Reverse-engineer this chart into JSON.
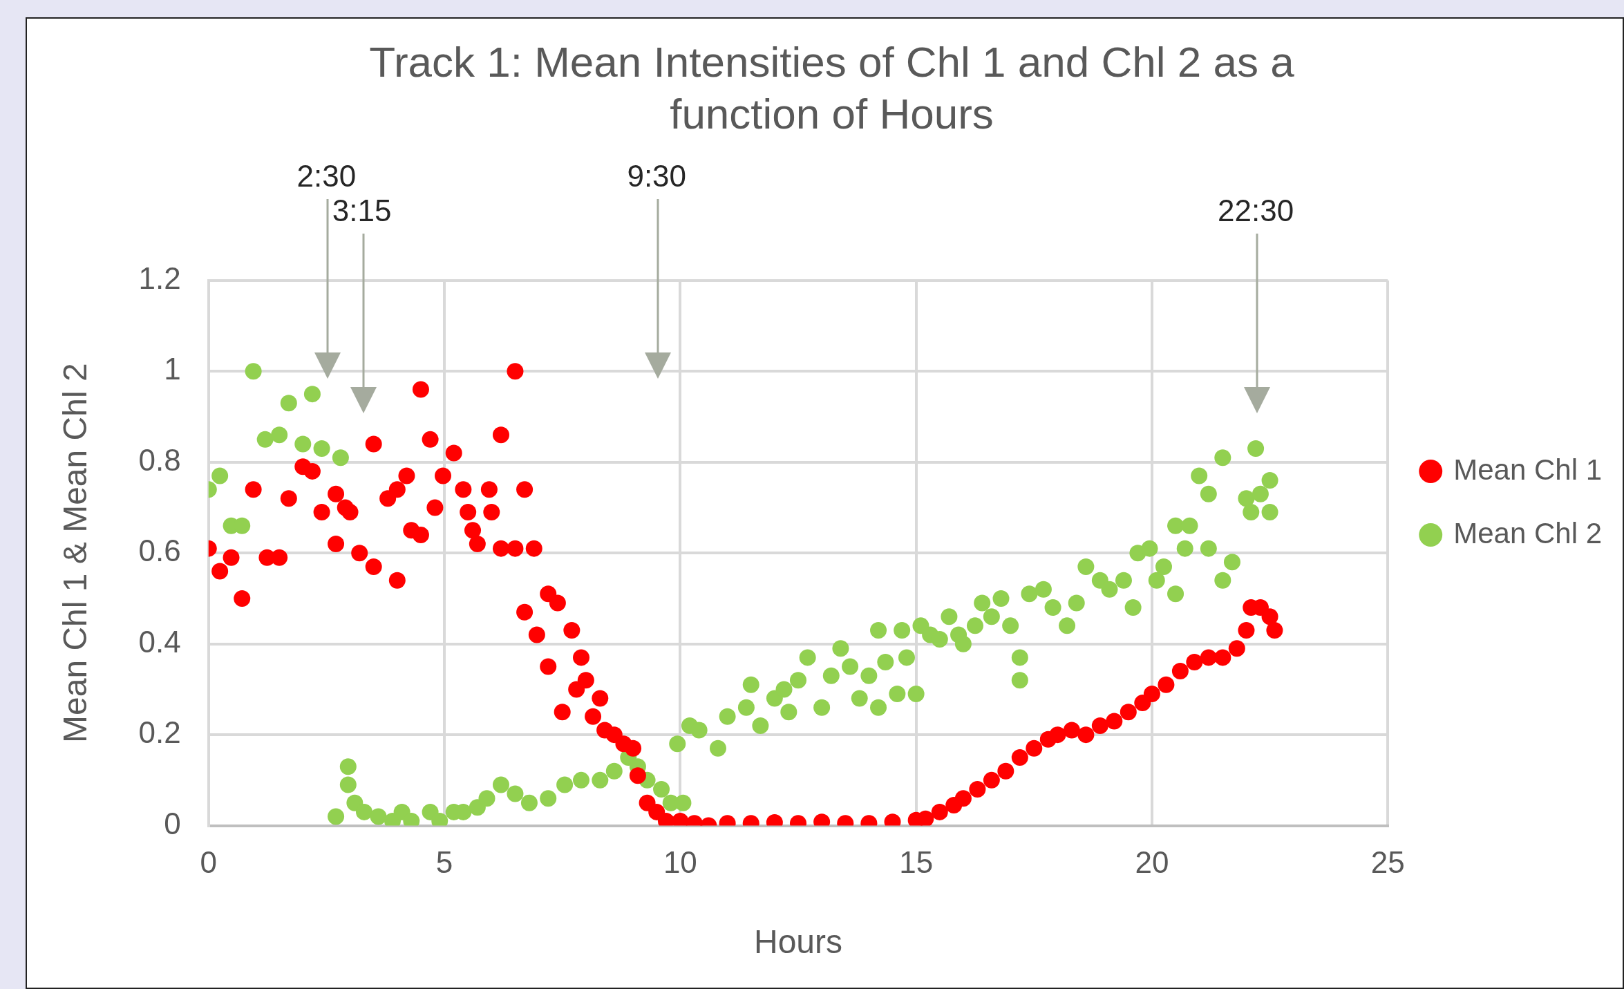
{
  "chart_data": {
    "type": "scatter",
    "title": "Track 1: Mean Intensities of Chl 1 and Chl 2 as a function of Hours",
    "xlabel": "Hours",
    "ylabel": "Mean Chl 1 & Mean Chl 2",
    "xlim": [
      0,
      25
    ],
    "xticks": [
      0,
      5,
      10,
      15,
      20,
      25
    ],
    "ylim": [
      0,
      1.2
    ],
    "yticks": [
      0,
      0.2,
      0.4,
      0.6,
      0.8,
      1,
      1.2
    ],
    "grid": true,
    "legend": "right",
    "marker": "circle",
    "ref_lines": [
      {
        "axis": "x",
        "value": 2.5,
        "label": "2:30",
        "color": "#a5ab9e"
      },
      {
        "axis": "x",
        "value": 3.25,
        "label": "3:15",
        "color": "#a5ab9e"
      },
      {
        "axis": "x",
        "value": 9.5,
        "label": "9:30",
        "color": "#a5ab9e"
      },
      {
        "axis": "x",
        "value": 22.2,
        "label": "22:30",
        "color": "#a5ab9e"
      }
    ],
    "series": [
      {
        "name": "Mean Chl 1",
        "color": "#ff0000",
        "x": [
          0,
          0.24,
          0.48,
          0.71,
          0.95,
          1.24,
          1.5,
          1.7,
          2.0,
          2.2,
          2.4,
          2.7,
          2.7,
          2.9,
          3.0,
          3.2,
          3.5,
          3.5,
          3.8,
          4.0,
          4.0,
          4.2,
          4.3,
          4.5,
          4.5,
          4.7,
          4.8,
          4.97,
          5.2,
          5.4,
          5.5,
          5.6,
          5.7,
          5.95,
          6.0,
          6.2,
          6.2,
          6.5,
          6.7,
          6.5,
          6.9,
          6.7,
          6.96,
          7.2,
          7.4,
          7.2,
          7.5,
          7.7,
          7.9,
          7.8,
          8.0,
          8.3,
          8.15,
          8.4,
          8.6,
          8.8,
          9.0,
          9.1,
          9.3,
          9.5,
          9.7,
          10.0,
          10.3,
          10.6,
          11.0,
          11.5,
          12.0,
          12.5,
          13.0,
          13.5,
          14.0,
          14.5,
          15.0,
          15.2,
          15.5,
          15.8,
          16.0,
          16.3,
          16.6,
          16.9,
          17.2,
          17.5,
          17.8,
          18.0,
          18.3,
          18.6,
          18.9,
          19.2,
          19.5,
          19.8,
          20.0,
          20.3,
          20.6,
          20.9,
          21.2,
          21.5,
          21.8,
          22.0,
          22.1,
          22.3,
          22.5,
          22.6
        ],
        "values": [
          0.61,
          0.56,
          0.59,
          0.5,
          0.74,
          0.59,
          0.59,
          0.72,
          0.79,
          0.78,
          0.69,
          0.73,
          0.62,
          0.7,
          0.69,
          0.6,
          0.84,
          0.57,
          0.72,
          0.54,
          0.74,
          0.77,
          0.65,
          0.64,
          0.96,
          0.85,
          0.7,
          0.77,
          0.82,
          0.74,
          0.69,
          0.65,
          0.62,
          0.74,
          0.69,
          0.86,
          0.61,
          1.0,
          0.74,
          0.61,
          0.61,
          0.47,
          0.42,
          0.51,
          0.49,
          0.35,
          0.25,
          0.43,
          0.37,
          0.3,
          0.32,
          0.28,
          0.24,
          0.21,
          0.2,
          0.18,
          0.17,
          0.11,
          0.05,
          0.03,
          0.01,
          0.01,
          0.005,
          0.0,
          0.005,
          0.005,
          0.007,
          0.005,
          0.008,
          0.005,
          0.005,
          0.008,
          0.012,
          0.015,
          0.03,
          0.045,
          0.06,
          0.08,
          0.1,
          0.12,
          0.15,
          0.17,
          0.19,
          0.2,
          0.21,
          0.2,
          0.22,
          0.23,
          0.25,
          0.27,
          0.29,
          0.31,
          0.34,
          0.36,
          0.37,
          0.37,
          0.39,
          0.43,
          0.48,
          0.48,
          0.46,
          0.43
        ]
      },
      {
        "name": "Mean Chl 2",
        "color": "#92d050",
        "x": [
          0,
          0.24,
          0.48,
          0.71,
          0.95,
          1.2,
          1.5,
          1.7,
          2.0,
          2.2,
          2.4,
          2.8,
          2.7,
          2.96,
          2.96,
          3.1,
          3.3,
          3.6,
          3.9,
          4.1,
          4.3,
          4.7,
          4.9,
          5.2,
          5.4,
          5.7,
          5.9,
          6.2,
          6.5,
          6.8,
          7.2,
          7.55,
          7.9,
          8.3,
          8.6,
          8.9,
          9.1,
          9.3,
          9.6,
          9.8,
          10.06,
          9.94,
          10.2,
          10.4,
          10.8,
          11.0,
          11.4,
          11.5,
          11.7,
          12.0,
          12.2,
          12.3,
          12.5,
          12.7,
          13.0,
          13.2,
          13.4,
          13.6,
          13.8,
          14.0,
          14.2,
          14.35,
          14.6,
          14.8,
          14.2,
          14.7,
          15.0,
          15.1,
          15.3,
          15.5,
          15.7,
          15.9,
          16.0,
          16.25,
          16.4,
          16.6,
          16.8,
          17.0,
          17.2,
          17.2,
          17.4,
          17.7,
          17.9,
          18.2,
          18.4,
          18.6,
          18.9,
          19.1,
          19.4,
          19.6,
          19.7,
          19.95,
          20.1,
          20.25,
          20.5,
          20.5,
          20.8,
          20.7,
          21.0,
          21.2,
          21.2,
          21.5,
          21.5,
          21.7,
          22.0,
          22.1,
          22.2,
          22.3,
          22.5,
          22.5
        ],
        "values": [
          0.74,
          0.77,
          0.66,
          0.66,
          1.0,
          0.85,
          0.86,
          0.93,
          0.84,
          0.95,
          0.83,
          0.81,
          0.02,
          0.13,
          0.09,
          0.05,
          0.03,
          0.02,
          0.01,
          0.03,
          0.01,
          0.03,
          0.01,
          0.03,
          0.03,
          0.04,
          0.06,
          0.09,
          0.07,
          0.05,
          0.06,
          0.09,
          0.1,
          0.1,
          0.12,
          0.15,
          0.13,
          0.1,
          0.08,
          0.05,
          0.05,
          0.18,
          0.22,
          0.21,
          0.17,
          0.24,
          0.26,
          0.31,
          0.22,
          0.28,
          0.3,
          0.25,
          0.32,
          0.37,
          0.26,
          0.33,
          0.39,
          0.35,
          0.28,
          0.33,
          0.26,
          0.36,
          0.29,
          0.37,
          0.43,
          0.43,
          0.29,
          0.44,
          0.42,
          0.41,
          0.46,
          0.42,
          0.4,
          0.44,
          0.49,
          0.46,
          0.5,
          0.44,
          0.37,
          0.32,
          0.51,
          0.52,
          0.48,
          0.44,
          0.49,
          0.57,
          0.54,
          0.52,
          0.54,
          0.48,
          0.6,
          0.61,
          0.54,
          0.57,
          0.51,
          0.66,
          0.66,
          0.61,
          0.77,
          0.73,
          0.61,
          0.81,
          0.54,
          0.58,
          0.72,
          0.69,
          0.83,
          0.73,
          0.76,
          0.69
        ]
      }
    ]
  }
}
